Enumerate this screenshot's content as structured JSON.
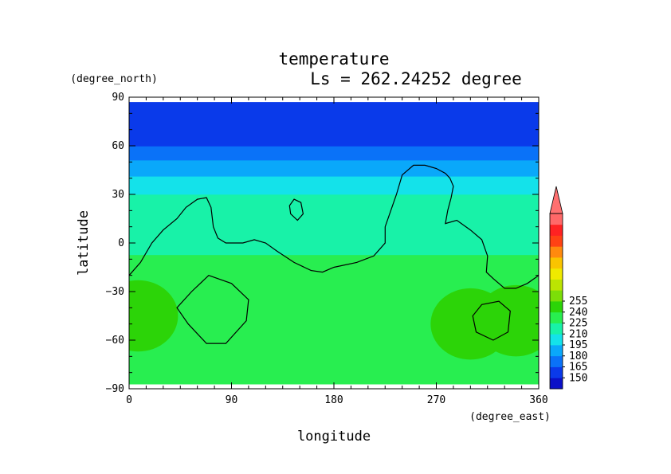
{
  "chart_data": {
    "type": "heatmap",
    "title": "temperature",
    "subtitle": "Ls = 262.24252 degree",
    "xlabel": "longitude",
    "ylabel": "latitude",
    "x_unit": "(degree_east)",
    "y_unit": "(degree_north)",
    "xlim": [
      0,
      360
    ],
    "ylim": [
      -90,
      90
    ],
    "x_ticks": [
      0,
      90,
      180,
      270,
      360
    ],
    "y_ticks": [
      90,
      60,
      30,
      0,
      -30,
      -60,
      -90
    ],
    "x_tick_labels": [
      "0",
      "90",
      "180",
      "270",
      "360"
    ],
    "y_tick_labels": [
      "90",
      "60",
      "30",
      "0",
      "−30",
      "−60",
      "−90"
    ],
    "data_lat_range": [
      -87,
      87
    ],
    "colorbar": {
      "levels": [
        150,
        165,
        180,
        195,
        210,
        225,
        240,
        255
      ],
      "level_labels": [
        "150",
        "165",
        "180",
        "195",
        "210",
        "225",
        "240",
        "255"
      ],
      "colors": [
        "#0a10c8",
        "#0a3aea",
        "#0a72f8",
        "#0aa8fa",
        "#14e2ea",
        "#18f2a8",
        "#28ee50",
        "#2cd408",
        "#7cde08",
        "#bce402",
        "#f0ea00",
        "#fac400",
        "#ff8a0e",
        "#ff4214",
        "#ff2222",
        "#ff6868"
      ],
      "extend": "both"
    },
    "zonal_temperature": [
      {
        "lat": 87,
        "value": 150
      },
      {
        "lat": 75,
        "value": 150
      },
      {
        "lat": 65,
        "value": 157
      },
      {
        "lat": 60,
        "value": 165
      },
      {
        "lat": 53,
        "value": 177
      },
      {
        "lat": 48,
        "value": 185
      },
      {
        "lat": 40,
        "value": 197
      },
      {
        "lat": 33,
        "value": 207
      },
      {
        "lat": 25,
        "value": 216
      },
      {
        "lat": 10,
        "value": 222
      },
      {
        "lat": -5,
        "value": 224
      },
      {
        "lat": -20,
        "value": 229
      },
      {
        "lat": -30,
        "value": 233
      },
      {
        "lat": -55,
        "value": 236
      },
      {
        "lat": -87,
        "value": 236
      }
    ],
    "warm_regions": [
      {
        "lon": 8,
        "lat": -45,
        "value": 245
      },
      {
        "lon": 300,
        "lat": -50,
        "value": 246
      },
      {
        "lon": 340,
        "lat": -48,
        "value": 246
      }
    ],
    "contours": [
      {
        "points": [
          [
            0,
            -20
          ],
          [
            10,
            -12
          ],
          [
            20,
            0
          ],
          [
            30,
            8
          ],
          [
            42,
            15
          ],
          [
            50,
            22
          ],
          [
            60,
            27
          ],
          [
            68,
            28
          ],
          [
            72,
            22
          ],
          [
            74,
            10
          ],
          [
            78,
            3
          ],
          [
            85,
            0
          ],
          [
            100,
            0
          ],
          [
            110,
            2
          ],
          [
            120,
            0
          ],
          [
            130,
            -5
          ],
          [
            145,
            -12
          ],
          [
            160,
            -17
          ],
          [
            170,
            -18
          ],
          [
            180,
            -15
          ],
          [
            200,
            -12
          ],
          [
            215,
            -8
          ],
          [
            225,
            0
          ],
          [
            225,
            10
          ],
          [
            230,
            20
          ],
          [
            235,
            30
          ],
          [
            240,
            42
          ],
          [
            250,
            48
          ],
          [
            260,
            48
          ],
          [
            270,
            46
          ],
          [
            278,
            43
          ],
          [
            282,
            40
          ],
          [
            285,
            35
          ],
          [
            283,
            28
          ],
          [
            280,
            20
          ],
          [
            278,
            12
          ],
          [
            288,
            14
          ],
          [
            300,
            8
          ],
          [
            310,
            2
          ],
          [
            315,
            -8
          ],
          [
            314,
            -18
          ],
          [
            320,
            -22
          ],
          [
            330,
            -28
          ],
          [
            340,
            -28
          ],
          [
            350,
            -25
          ],
          [
            360,
            -20
          ]
        ],
        "closed": false
      },
      {
        "points": [
          [
            145,
            27
          ],
          [
            151,
            25
          ],
          [
            153,
            18
          ],
          [
            148,
            14
          ],
          [
            142,
            18
          ],
          [
            141,
            23
          ]
        ],
        "closed": true
      },
      {
        "points": [
          [
            55,
            -30
          ],
          [
            70,
            -20
          ],
          [
            90,
            -25
          ],
          [
            105,
            -35
          ],
          [
            103,
            -48
          ],
          [
            85,
            -62
          ],
          [
            68,
            -62
          ],
          [
            52,
            -50
          ],
          [
            42,
            -40
          ]
        ],
        "closed": true
      },
      {
        "points": [
          [
            310,
            -38
          ],
          [
            325,
            -36
          ],
          [
            335,
            -42
          ],
          [
            333,
            -55
          ],
          [
            320,
            -60
          ],
          [
            305,
            -55
          ],
          [
            302,
            -45
          ]
        ],
        "closed": true
      }
    ]
  }
}
